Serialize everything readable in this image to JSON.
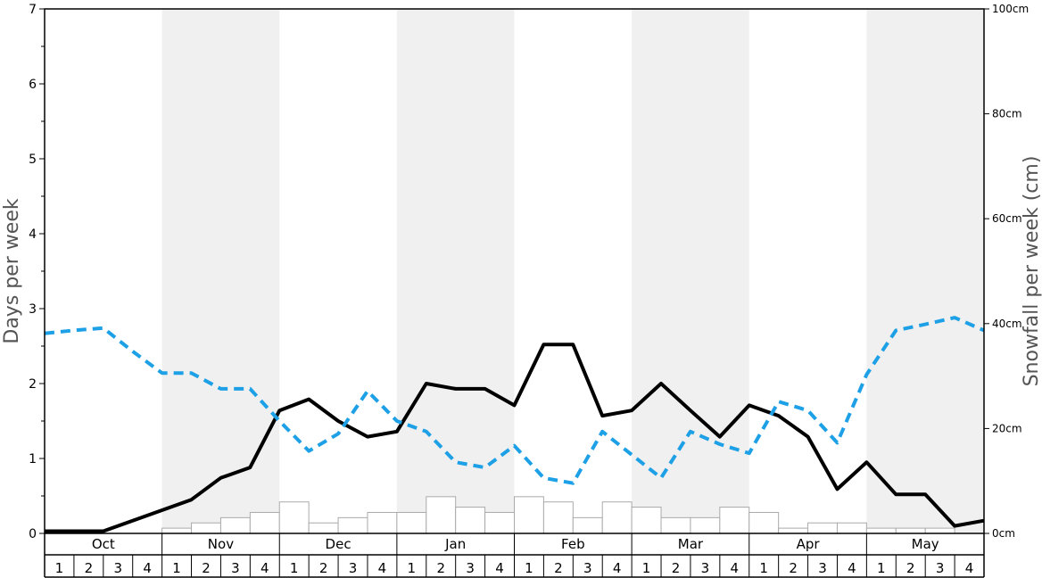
{
  "chart_data": {
    "type": "line",
    "months": [
      "Oct",
      "Nov",
      "Dec",
      "Jan",
      "Feb",
      "Mar",
      "Apr",
      "May"
    ],
    "week_labels": [
      "1",
      "2",
      "3",
      "4"
    ],
    "ylabel_left": "Days per week",
    "ylabel_right": "Snowfall per week (cm)",
    "ylim_left": [
      0,
      7
    ],
    "ylim_right": [
      0,
      100
    ],
    "left_ticks": [
      "0",
      "1",
      "2",
      "3",
      "4",
      "5",
      "6",
      "7"
    ],
    "right_ticks": [
      "0cm",
      "20cm",
      "40cm",
      "60cm",
      "80cm",
      "100cm"
    ],
    "series": [
      {
        "values": [
          0.03,
          0.03,
          0.03,
          0.17,
          0.31,
          0.45,
          0.74,
          0.88,
          1.64,
          1.79,
          1.5,
          1.29,
          1.36,
          2.0,
          1.93,
          1.93,
          1.71,
          2.52,
          2.52,
          1.57,
          1.64,
          2.0,
          1.64,
          1.29,
          1.71,
          1.57,
          1.29,
          0.59,
          0.95,
          0.52,
          0.52,
          0.1,
          0.17
        ],
        "color": "#000000",
        "style": "solid"
      },
      {
        "values": [
          2.67,
          2.71,
          2.74,
          2.43,
          2.14,
          2.14,
          1.93,
          1.93,
          1.5,
          1.1,
          1.33,
          1.9,
          1.5,
          1.36,
          0.95,
          0.88,
          1.17,
          0.74,
          0.67,
          1.36,
          1.05,
          0.74,
          1.36,
          1.19,
          1.07,
          1.76,
          1.64,
          1.21,
          2.12,
          2.71,
          2.79,
          2.88,
          2.71
        ],
        "color": "#1EA0E6",
        "style": "dashed"
      }
    ],
    "snowfall_cm": [
      0,
      0,
      0,
      0,
      1,
      2,
      3,
      4,
      6,
      2,
      3,
      4,
      4,
      7,
      5,
      4,
      7,
      6,
      3,
      6,
      5,
      3,
      3,
      5,
      4,
      1,
      2,
      2,
      1,
      1,
      1,
      0
    ],
    "shading": {
      "band_color": "#f0f0f0"
    },
    "grid": false
  }
}
